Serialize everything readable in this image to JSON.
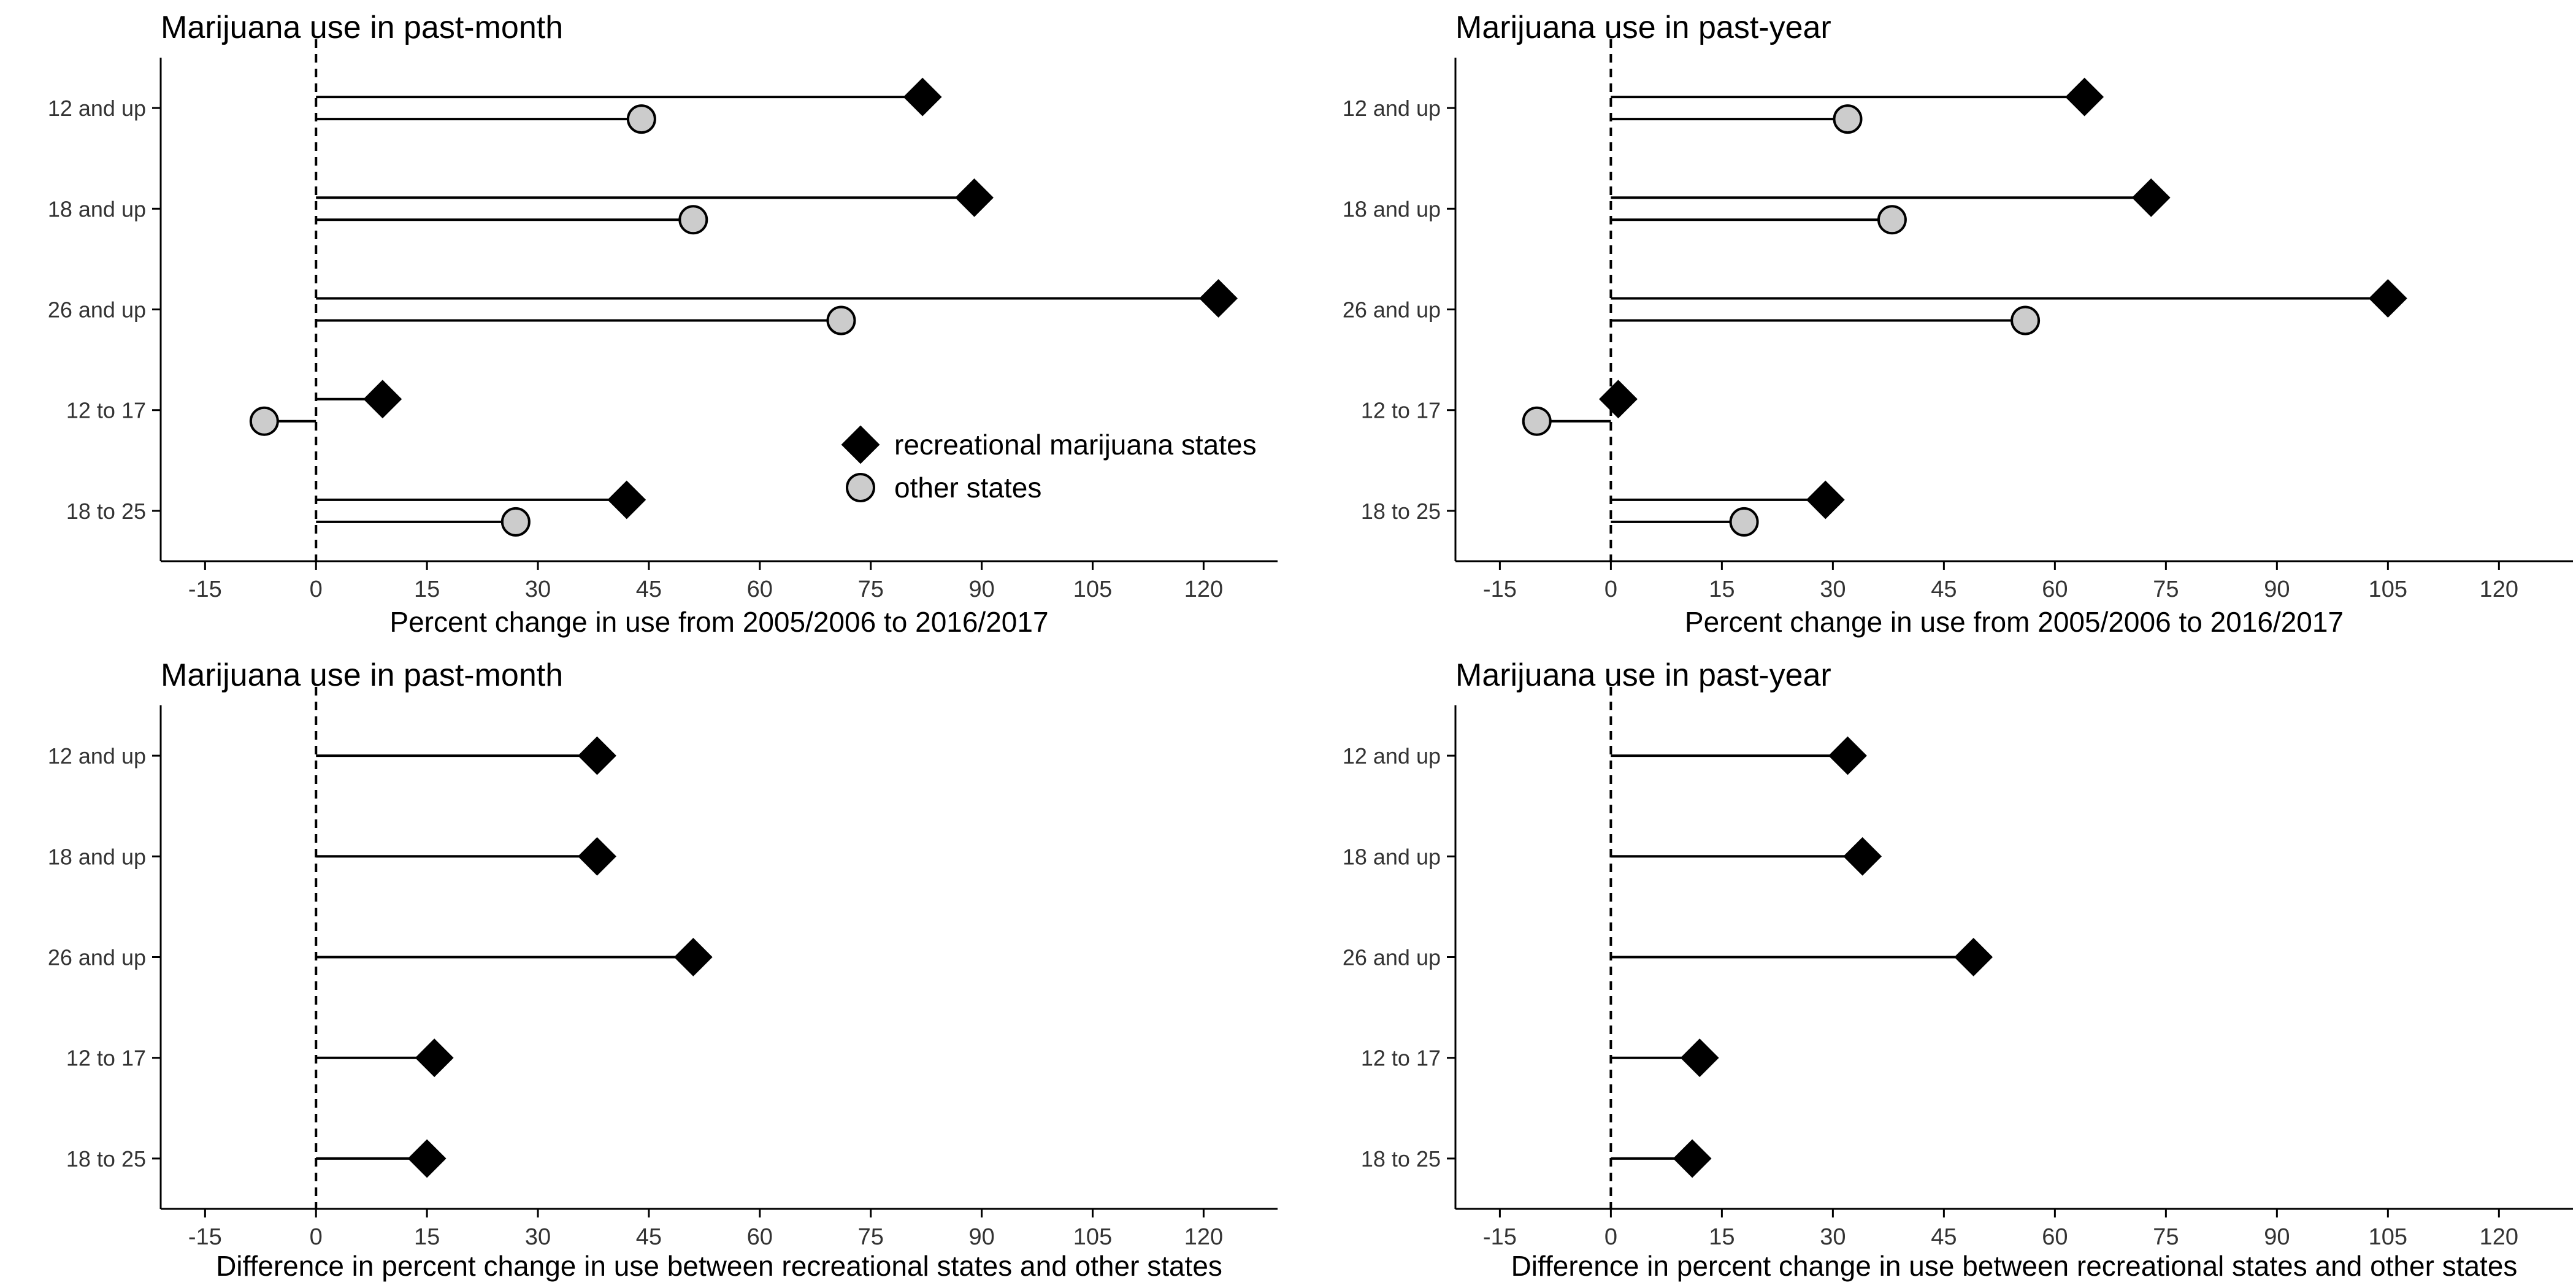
{
  "figure": {
    "legend_labels": [
      "recreational marijuana states",
      "other states"
    ],
    "legend_placement": "inside panel 1, lower-right",
    "colors": {
      "recreational": "#000000",
      "other": "#cccccc",
      "stroke": "#000000"
    },
    "marker_shapes": {
      "recreational": "diamond",
      "other": "circle"
    },
    "reference_line": {
      "x": 0,
      "style": "dashed"
    }
  },
  "chart_data": [
    {
      "type": "lollipop",
      "title": "Marijuana use in past-month",
      "xlabel": "Percent change in use from 2005/2006 to 2016/2017",
      "ylabel": "",
      "xlim": [
        -21,
        130
      ],
      "xticks": [
        -15,
        0,
        15,
        30,
        45,
        60,
        75,
        90,
        105,
        120
      ],
      "categories": [
        "12 and up",
        "18 and up",
        "26 and up",
        "12 to 17",
        "18 to 25"
      ],
      "series": [
        {
          "name": "recreational marijuana states",
          "values": [
            82,
            89,
            122,
            9,
            42
          ]
        },
        {
          "name": "other states",
          "values": [
            44,
            51,
            71,
            -7,
            27
          ]
        }
      ],
      "grid": false,
      "legend": "bottom-right"
    },
    {
      "type": "lollipop",
      "title": "Marijuana use in past-year",
      "xlabel": "Percent change in use from 2005/2006 to 2016/2017",
      "ylabel": "",
      "xlim": [
        -21,
        130
      ],
      "xticks": [
        -15,
        0,
        15,
        30,
        45,
        60,
        75,
        90,
        105,
        120
      ],
      "categories": [
        "12 and up",
        "18 and up",
        "26 and up",
        "12 to 17",
        "18 to 25"
      ],
      "series": [
        {
          "name": "recreational marijuana states",
          "values": [
            64,
            73,
            105,
            1,
            29
          ]
        },
        {
          "name": "other states",
          "values": [
            32,
            38,
            56,
            -10,
            18
          ]
        }
      ],
      "grid": false,
      "legend": "none"
    },
    {
      "type": "lollipop",
      "title": "Marijuana use in past-month",
      "xlabel": "Difference in percent change in use between recreational states and other states",
      "ylabel": "",
      "xlim": [
        -21,
        130
      ],
      "xticks": [
        -15,
        0,
        15,
        30,
        45,
        60,
        75,
        90,
        105,
        120
      ],
      "categories": [
        "12 and up",
        "18 and up",
        "26 and up",
        "12 to 17",
        "18 to 25"
      ],
      "series": [
        {
          "values": [
            38,
            38,
            51,
            16,
            15
          ]
        }
      ],
      "grid": false,
      "legend": "none"
    },
    {
      "type": "lollipop",
      "title": "Marijuana use in past-year",
      "xlabel": "Difference in percent change in use between recreational states and other states",
      "ylabel": "",
      "xlim": [
        -21,
        130
      ],
      "xticks": [
        -15,
        0,
        15,
        30,
        45,
        60,
        75,
        90,
        105,
        120
      ],
      "categories": [
        "12 and up",
        "18 and up",
        "26 and up",
        "12 to 17",
        "18 to 25"
      ],
      "series": [
        {
          "values": [
            32,
            34,
            49,
            12,
            11
          ]
        }
      ],
      "grid": false,
      "legend": "none"
    }
  ]
}
